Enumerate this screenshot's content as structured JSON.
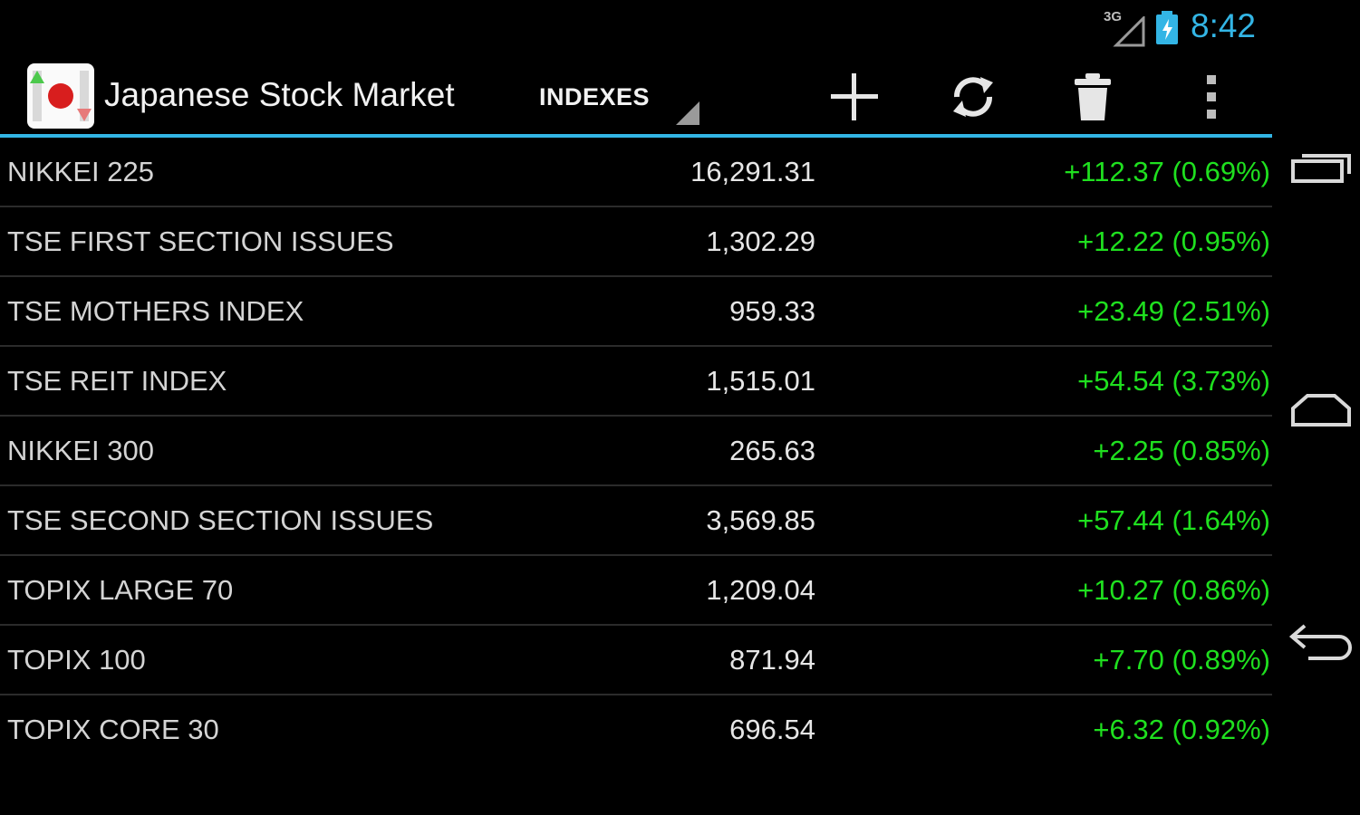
{
  "status_bar": {
    "network": "3G",
    "time": "8:42",
    "accent_color": "#33b5e5"
  },
  "action_bar": {
    "app_title": "Japanese Stock Market",
    "spinner_label": "INDEXES",
    "actions": {
      "add": "plus-icon",
      "refresh": "refresh-icon",
      "delete": "trash-icon",
      "overflow": "overflow-menu-icon"
    }
  },
  "indexes": [
    {
      "name": "NIKKEI 225",
      "value": "16,291.31",
      "change": "+112.37 (0.69%)"
    },
    {
      "name": "TSE FIRST SECTION ISSUES",
      "value": "1,302.29",
      "change": "+12.22 (0.95%)"
    },
    {
      "name": "TSE MOTHERS INDEX",
      "value": "959.33",
      "change": "+23.49 (2.51%)"
    },
    {
      "name": "TSE REIT INDEX",
      "value": "1,515.01",
      "change": "+54.54 (3.73%)"
    },
    {
      "name": "NIKKEI 300",
      "value": "265.63",
      "change": "+2.25 (0.85%)"
    },
    {
      "name": "TSE SECOND SECTION ISSUES",
      "value": "3,569.85",
      "change": "+57.44 (1.64%)"
    },
    {
      "name": "TOPIX LARGE 70",
      "value": "1,209.04",
      "change": "+10.27 (0.86%)"
    },
    {
      "name": "TOPIX 100",
      "value": "871.94",
      "change": "+7.70 (0.89%)"
    },
    {
      "name": "TOPIX CORE 30",
      "value": "696.54",
      "change": "+6.32 (0.92%)"
    }
  ],
  "colors": {
    "positive_change": "#1fe01f",
    "background": "#000000"
  },
  "nav_bar": {
    "recent_apps": "recent-apps-icon",
    "home": "home-icon",
    "back": "back-icon"
  }
}
